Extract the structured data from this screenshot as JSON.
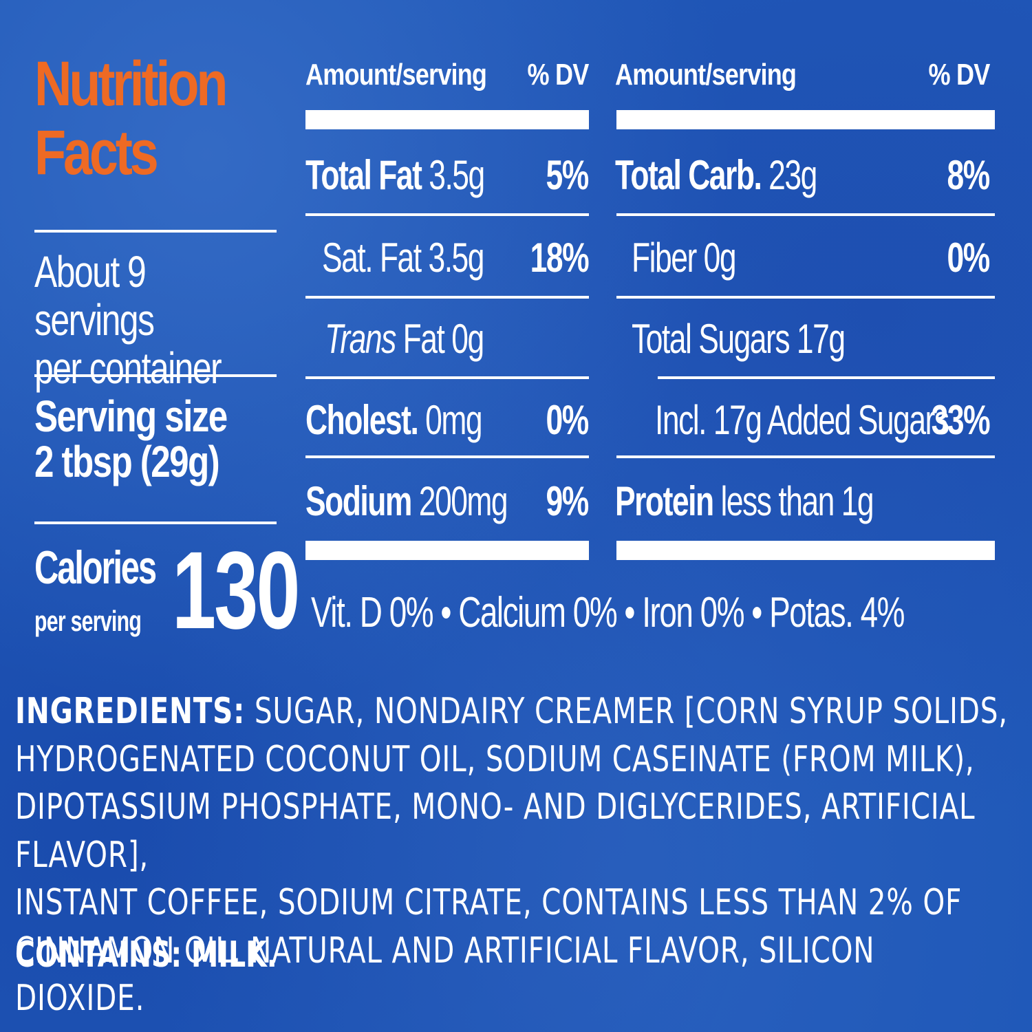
{
  "title": {
    "line1": "Nutrition",
    "line2": "Facts"
  },
  "servings": {
    "line1": "About 9 servings",
    "line2": "per container"
  },
  "serving_size": {
    "line1": "Serving size",
    "line2": "2 tbsp (29g)"
  },
  "calories": {
    "label": "Calories",
    "sublabel": "per serving",
    "value": "130"
  },
  "headers": {
    "amount": "Amount/serving",
    "dv": "% DV"
  },
  "left_rows": [
    {
      "name": "Total Fat",
      "amount": "3.5g",
      "dv": "5%"
    },
    {
      "name": "Sat. Fat",
      "amount": "3.5g",
      "dv": "18%"
    },
    {
      "name": "Trans",
      "amount": "Fat 0g",
      "dv": ""
    },
    {
      "name": "Cholest.",
      "amount": "0mg",
      "dv": "0%"
    },
    {
      "name": "Sodium",
      "amount": "200mg",
      "dv": "9%"
    }
  ],
  "right_rows": [
    {
      "name": "Total Carb.",
      "amount": "23g",
      "dv": "8%"
    },
    {
      "name": "Fiber",
      "amount": "0g",
      "dv": "0%"
    },
    {
      "name": "Total Sugars",
      "amount": "17g",
      "dv": ""
    },
    {
      "name": "Incl. 17g Added Sugars",
      "amount": "",
      "dv": "33%"
    },
    {
      "name": "Protein",
      "amount": "less than 1g",
      "dv": ""
    }
  ],
  "vitamins": "Vit. D 0% • Calcium 0% • Iron 0% • Potas. 4%",
  "ingredients": {
    "label": "INGREDIENTS:",
    "lines": [
      "SUGAR, NONDAIRY CREAMER [CORN SYRUP SOLIDS,",
      "HYDROGENATED COCONUT OIL, SODIUM CASEINATE (FROM MILK),",
      "DIPOTASSIUM PHOSPHATE, MONO- AND DIGLYCERIDES, ARTIFICIAL FLAVOR],",
      "INSTANT COFFEE, SODIUM CITRATE, CONTAINS LESS THAN 2% OF",
      "CINNAMON OIL, NATURAL AND ARTIFICIAL FLAVOR, SILICON DIOXIDE."
    ]
  },
  "contains": "CONTAINS: MILK.",
  "colors": {
    "background": "#1f58b8",
    "title": "#ee6a24",
    "text": "#ffffff"
  }
}
